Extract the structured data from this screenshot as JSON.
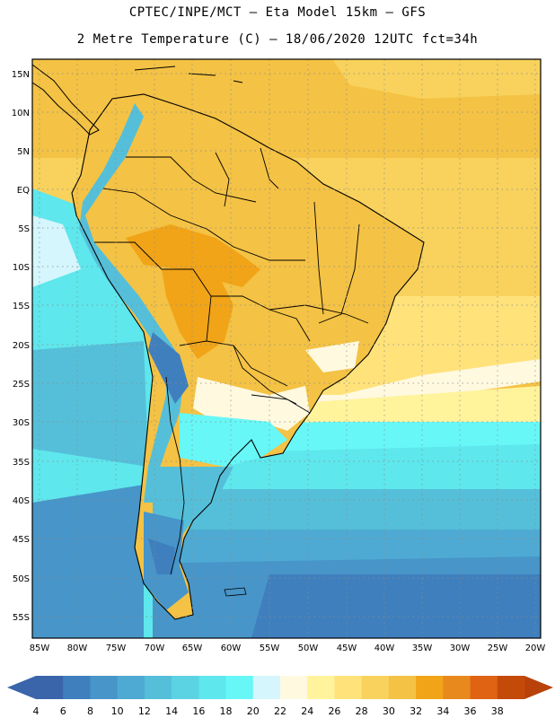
{
  "header": {
    "line1": "CPTEC/INPE/MCT –  Eta Model 15km – GFS",
    "line2": "2 Metre Temperature (C) – 18/06/2020 12UTC fct=34h"
  },
  "map": {
    "lat_labels": [
      "15N",
      "10N",
      "5N",
      "EQ",
      "5S",
      "10S",
      "15S",
      "20S",
      "25S",
      "30S",
      "35S",
      "40S",
      "45S",
      "50S",
      "55S"
    ],
    "lon_labels": [
      "85W",
      "80W",
      "75W",
      "70W",
      "65W",
      "60W",
      "55W",
      "50W",
      "45W",
      "40W",
      "35W",
      "30W",
      "25W",
      "20W"
    ]
  },
  "colorbar": {
    "values": [
      "4",
      "6",
      "8",
      "10",
      "12",
      "14",
      "16",
      "18",
      "20",
      "22",
      "24",
      "26",
      "28",
      "30",
      "32",
      "34",
      "36",
      "38"
    ],
    "colors": [
      "#3a65ab",
      "#3f7fbe",
      "#4795c9",
      "#4eaad3",
      "#55bfd9",
      "#5cd3e3",
      "#5ee7ec",
      "#67f7f7",
      "#d4f6fc",
      "#fff9e0",
      "#fff39c",
      "#ffe27a",
      "#f8d25c",
      "#f4c244",
      "#f1a417",
      "#e8891e",
      "#df6313",
      "#c44a0a"
    ],
    "low_color": "#3a65ab",
    "high_color": "#b8420a"
  }
}
